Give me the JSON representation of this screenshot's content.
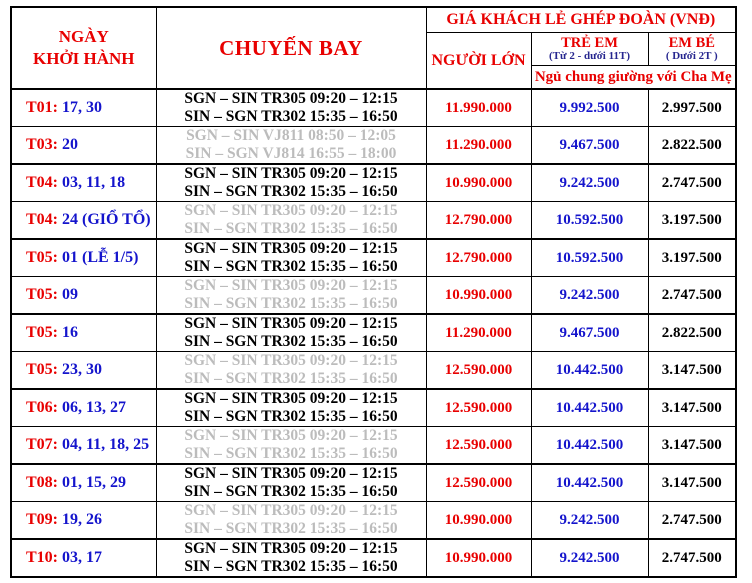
{
  "colors": {
    "header_red": "#e80000",
    "date_blue": "#1414cc",
    "sublabel_navy": "#26268f",
    "dim_flight_gray": "#bcbcbc",
    "border_black": "#000000"
  },
  "header": {
    "date_line1": "NGÀY",
    "date_line2": "KHỞI HÀNH",
    "flight": "CHUYẾN BAY",
    "price_group": "GIÁ KHÁCH LẺ GHÉP ĐOÀN (VNĐ)",
    "adult": "NGƯỜI LỚN",
    "child": "TRẺ EM",
    "child_sub": "(Từ 2 - dưới 11T)",
    "infant": "EM BÉ",
    "infant_sub": "( Dưới 2T )",
    "sleep_note": "Ngủ chung giường với Cha Mẹ"
  },
  "rows": [
    {
      "month": "T01:",
      "days": "17, 30",
      "flight1": "SGN – SIN TR305 09:20 – 12:15",
      "flight2": "SIN – SGN TR302 15:35 – 16:50",
      "dim": false,
      "adult": "11.990.000",
      "child": "9.992.500",
      "infant": "2.997.500"
    },
    {
      "month": "T03:",
      "days": "20",
      "flight1": "SGN – SIN VJ811 08:50 – 12:05",
      "flight2": "SIN – SGN VJ814 16:55 – 18:00",
      "dim": true,
      "adult": "11.290.000",
      "child": "9.467.500",
      "infant": "2.822.500"
    },
    {
      "month": "T04:",
      "days": "03, 11, 18",
      "flight1": "SGN – SIN TR305 09:20 – 12:15",
      "flight2": "SIN – SGN TR302 15:35 – 16:50",
      "dim": false,
      "adult": "10.990.000",
      "child": "9.242.500",
      "infant": "2.747.500"
    },
    {
      "month": "T04:",
      "days": "24 (GIỔ TỔ)",
      "flight1": "SGN – SIN TR305 09:20 – 12:15",
      "flight2": "SIN – SGN TR302 15:35 – 16:50",
      "dim": true,
      "adult": "12.790.000",
      "child": "10.592.500",
      "infant": "3.197.500"
    },
    {
      "month": "T05:",
      "days": "01 (LỄ 1/5)",
      "flight1": "SGN – SIN TR305 09:20 – 12:15",
      "flight2": "SIN – SGN TR302 15:35 – 16:50",
      "dim": false,
      "adult": "12.790.000",
      "child": "10.592.500",
      "infant": "3.197.500"
    },
    {
      "month": "T05:",
      "days": "09",
      "flight1": "SGN – SIN TR305 09:20 – 12:15",
      "flight2": "SIN – SGN TR302 15:35 – 16:50",
      "dim": true,
      "adult": "10.990.000",
      "child": "9.242.500",
      "infant": "2.747.500"
    },
    {
      "month": "T05:",
      "days": "16",
      "flight1": "SGN – SIN TR305 09:20 – 12:15",
      "flight2": "SIN – SGN TR302 15:35 – 16:50",
      "dim": false,
      "adult": "11.290.000",
      "child": "9.467.500",
      "infant": "2.822.500"
    },
    {
      "month": "T05:",
      "days": "23, 30",
      "flight1": "SGN – SIN TR305 09:20 – 12:15",
      "flight2": "SIN – SGN TR302 15:35 – 16:50",
      "dim": true,
      "adult": "12.590.000",
      "child": "10.442.500",
      "infant": "3.147.500"
    },
    {
      "month": "T06:",
      "days": "06, 13, 27",
      "flight1": "SGN – SIN TR305 09:20 – 12:15",
      "flight2": "SIN – SGN TR302 15:35 – 16:50",
      "dim": false,
      "adult": "12.590.000",
      "child": "10.442.500",
      "infant": "3.147.500"
    },
    {
      "month": "T07:",
      "days": "04, 11, 18, 25",
      "flight1": "SGN – SIN TR305 09:20 – 12:15",
      "flight2": "SIN – SGN TR302 15:35 – 16:50",
      "dim": true,
      "adult": "12.590.000",
      "child": "10.442.500",
      "infant": "3.147.500"
    },
    {
      "month": "T08:",
      "days": "01, 15, 29",
      "flight1": "SGN – SIN TR305 09:20 – 12:15",
      "flight2": "SIN – SGN TR302 15:35 – 16:50",
      "dim": false,
      "adult": "12.590.000",
      "child": "10.442.500",
      "infant": "3.147.500"
    },
    {
      "month": "T09:",
      "days": "19, 26",
      "flight1": "SGN – SIN TR305 09:20 – 12:15",
      "flight2": "SIN – SGN TR302 15:35 – 16:50",
      "dim": true,
      "adult": "10.990.000",
      "child": "9.242.500",
      "infant": "2.747.500"
    },
    {
      "month": "T10:",
      "days": "03, 17",
      "flight1": "SGN – SIN TR305 09:20 – 12:15",
      "flight2": "SIN – SGN TR302 15:35 – 16:50",
      "dim": false,
      "adult": "10.990.000",
      "child": "9.242.500",
      "infant": "2.747.500"
    }
  ]
}
